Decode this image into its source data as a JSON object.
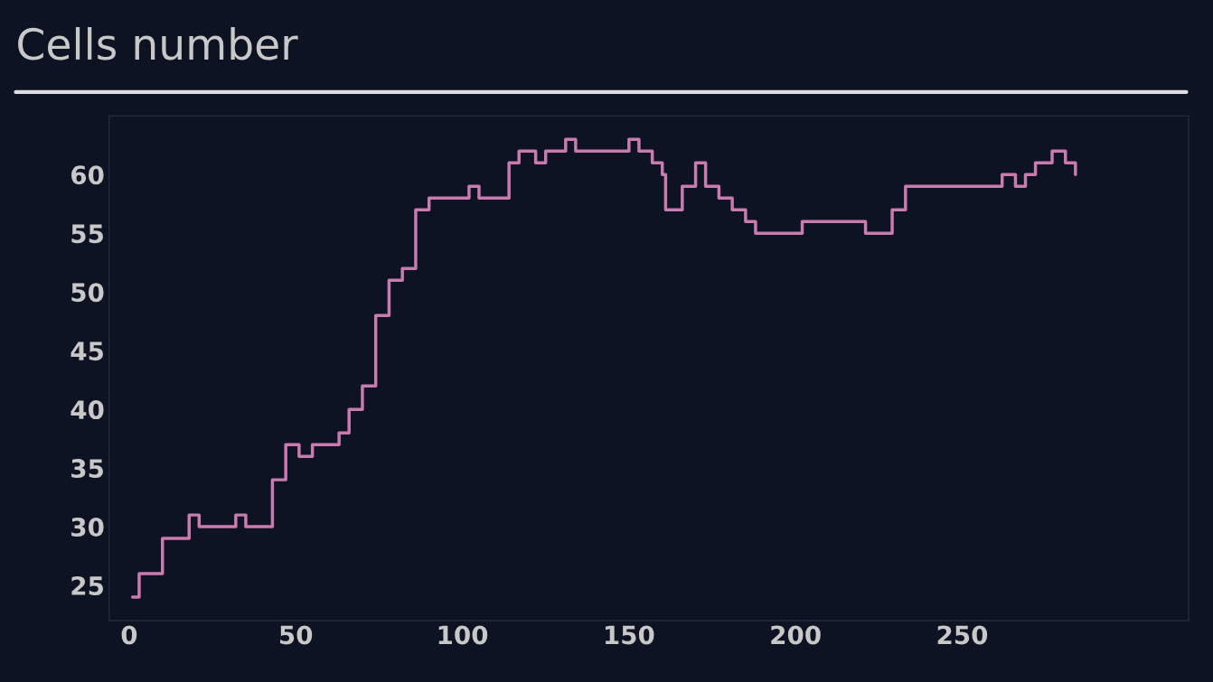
{
  "chart_data": {
    "type": "step",
    "title": "Cells number",
    "x": [
      1,
      3,
      10,
      18,
      21,
      32,
      35,
      43,
      47,
      51,
      55,
      63,
      66,
      70,
      74,
      78,
      82,
      86,
      90,
      102,
      105,
      114,
      117,
      122,
      125,
      131,
      134,
      150,
      153,
      157,
      160,
      161,
      166,
      170,
      173,
      177,
      181,
      185,
      188,
      202,
      221,
      229,
      233,
      262,
      266,
      269,
      272,
      277,
      281,
      284
    ],
    "series": [
      {
        "color": "#c97bb0",
        "values": [
          24,
          26,
          29,
          31,
          30,
          31,
          30,
          34,
          37,
          36,
          37,
          38,
          40,
          42,
          48,
          51,
          52,
          57,
          58,
          59,
          58,
          61,
          62,
          61,
          62,
          63,
          62,
          63,
          62,
          61,
          60,
          57,
          59,
          61,
          59,
          58,
          57,
          56,
          55,
          56,
          55,
          57,
          59,
          60,
          59,
          60,
          61,
          62,
          61,
          60
        ]
      }
    ],
    "xlim": [
      -6,
      318
    ],
    "ylim": [
      22,
      65
    ],
    "xticks": [
      0,
      50,
      100,
      150,
      200,
      250
    ],
    "yticks": [
      25,
      30,
      35,
      40,
      45,
      50,
      55,
      60
    ],
    "grid": false,
    "legend": false
  }
}
